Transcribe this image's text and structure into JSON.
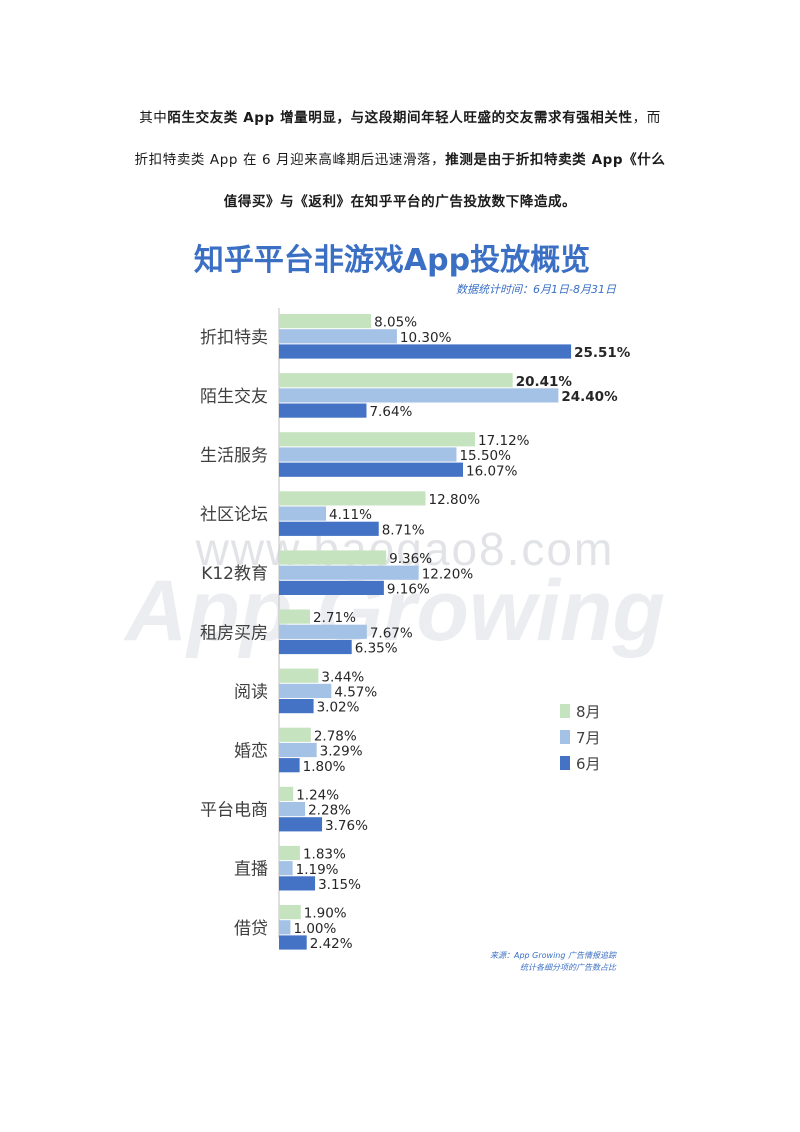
{
  "paragraph": {
    "l1_a": "其中",
    "l1_b": "陌生交友类 App 增量明显，与这段期间年轻人旺盛的交友需求有强相关性",
    "l1_c": "，而",
    "l2_a": "折扣特卖类 App 在 6 月迎来高峰期后迅速滑落，",
    "l2_b": "推测是由于折扣特卖类 App《什么",
    "l3": "值得买》与《返利》在知乎平台的广告投放数下降造成。"
  },
  "watermark": {
    "site": "www.baogao8.com",
    "brand": "App Growing"
  },
  "chart_data": {
    "type": "bar",
    "orientation": "horizontal",
    "title": "知乎平台非游戏App投放概览",
    "subtitle": "数据统计时间：6月1日-8月31日",
    "categories": [
      "折扣特卖",
      "陌生交友",
      "生活服务",
      "社区论坛",
      "K12教育",
      "租房买房",
      "阅读",
      "婚恋",
      "平台电商",
      "直播",
      "借贷"
    ],
    "series": [
      {
        "name": "8月",
        "color": "#c6e3bf",
        "values": [
          8.05,
          20.41,
          17.12,
          12.8,
          9.36,
          2.71,
          3.44,
          2.78,
          1.24,
          1.83,
          1.9
        ],
        "labels": [
          "8.05%",
          "20.41%",
          "17.12%",
          "12.80%",
          "9.36%",
          "2.71%",
          "3.44%",
          "2.78%",
          "1.24%",
          "1.83%",
          "1.90%"
        ]
      },
      {
        "name": "7月",
        "color": "#a4c2e6",
        "values": [
          10.3,
          24.4,
          15.5,
          4.11,
          12.2,
          7.67,
          4.57,
          3.29,
          2.28,
          1.19,
          1.0
        ],
        "labels": [
          "10.30%",
          "24.40%",
          "15.50%",
          "4.11%",
          "12.20%",
          "7.67%",
          "4.57%",
          "3.29%",
          "2.28%",
          "1.19%",
          "1.00%"
        ]
      },
      {
        "name": "6月",
        "color": "#4472c4",
        "values": [
          25.51,
          7.64,
          16.07,
          8.71,
          9.16,
          6.35,
          3.02,
          1.8,
          3.76,
          3.15,
          2.42
        ],
        "labels": [
          "25.51%",
          "7.64%",
          "16.07%",
          "8.71%",
          "9.16%",
          "6.35%",
          "3.02%",
          "1.80%",
          "3.76%",
          "3.15%",
          "2.42%"
        ]
      }
    ],
    "bold_labels": [
      [
        0,
        2
      ],
      [
        1,
        0
      ],
      [
        1,
        1
      ]
    ],
    "legend_position": "right",
    "source_line1": "来源：App Growing 广告情报追踪",
    "source_line2": "统计各细分项的广告数占比",
    "title_color": "#3a6fc4"
  }
}
